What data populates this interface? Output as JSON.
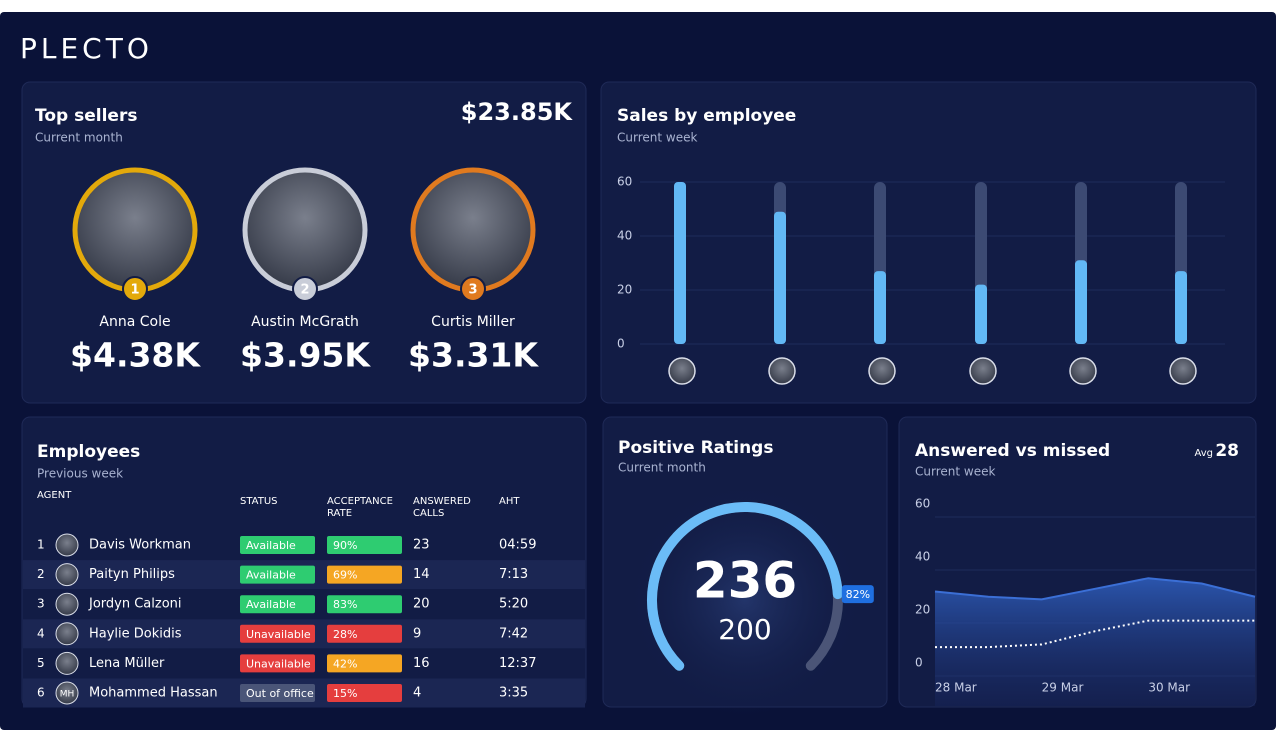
{
  "logo": "PLECTO",
  "top_sellers": {
    "title": "Top sellers",
    "subtitle": "Current month",
    "total": "$23.85K",
    "sellers": [
      {
        "rank": 1,
        "name": "Anna Cole",
        "amount": "$4.38K",
        "color": "#e3a90b"
      },
      {
        "rank": 2,
        "name": "Austin McGrath",
        "amount": "$3.95K",
        "color": "#c9cdd8"
      },
      {
        "rank": 3,
        "name": "Curtis Miller",
        "amount": "$3.31K",
        "color": "#e07a1f"
      }
    ]
  },
  "sales_by_employee": {
    "type": "bar",
    "title": "Sales by employee",
    "subtitle": "Current week",
    "values": [
      60,
      49,
      27,
      22,
      31,
      27
    ],
    "color": "#62b8f5",
    "ylim": [
      0,
      60
    ],
    "yticks": [
      0,
      20,
      40,
      60
    ],
    "grid": true
  },
  "employees": {
    "title": "Employees",
    "subtitle": "Previous week",
    "columns": [
      "AGENT",
      "STATUS",
      "ACCEPTANCE RATE",
      "ANSWERED CALLS",
      "AHT"
    ],
    "rows": [
      {
        "rank": 1,
        "agent": "Davis Workman",
        "status": "Available",
        "status_color": "#2ecc71",
        "acceptance_rate": "90%",
        "rate_color": "#2ecc71",
        "answered_calls": 23,
        "aht": "04:59"
      },
      {
        "rank": 2,
        "agent": "Paityn Philips",
        "status": "Available",
        "status_color": "#2ecc71",
        "acceptance_rate": "69%",
        "rate_color": "#f5a623",
        "answered_calls": 14,
        "aht": "7:13"
      },
      {
        "rank": 3,
        "agent": "Jordyn Calzoni",
        "status": "Available",
        "status_color": "#2ecc71",
        "acceptance_rate": "83%",
        "rate_color": "#2ecc71",
        "answered_calls": 20,
        "aht": "5:20"
      },
      {
        "rank": 4,
        "agent": "Haylie Dokidis",
        "status": "Unavailable",
        "status_color": "#e53e3e",
        "acceptance_rate": "28%",
        "rate_color": "#e53e3e",
        "answered_calls": 9,
        "aht": "7:42"
      },
      {
        "rank": 5,
        "agent": "Lena Müller",
        "status": "Unavailable",
        "status_color": "#e53e3e",
        "acceptance_rate": "42%",
        "rate_color": "#f5a623",
        "answered_calls": 16,
        "aht": "12:37"
      },
      {
        "rank": 6,
        "agent": "Mohammed Hassan",
        "initials": "MH",
        "status": "Out of office",
        "status_color": "#4a5578",
        "acceptance_rate": "15%",
        "rate_color": "#e53e3e",
        "answered_calls": 4,
        "aht": "3:35"
      }
    ]
  },
  "positive_ratings": {
    "type": "gauge",
    "title": "Positive Ratings",
    "subtitle": "Current month",
    "value": 236,
    "target": 200,
    "percent": {
      "value": 82,
      "label": "82%"
    },
    "color": "#6bbcf7"
  },
  "answered_vs_missed": {
    "type": "line",
    "title": "Answered vs missed",
    "subtitle": "Current week",
    "avg_label": "Avg",
    "avg": 28,
    "categories": [
      "28 Mar",
      null,
      "29 Mar",
      null,
      "30 Mar",
      null,
      null
    ],
    "series": [
      {
        "name": "Answered",
        "color": "#3b6fd6",
        "values": [
          27,
          25,
          24,
          28,
          32,
          30,
          25
        ]
      },
      {
        "name": "Missed",
        "color": "#ffffff",
        "values": [
          6,
          6,
          7,
          12,
          16,
          16,
          16
        ]
      }
    ],
    "ylim": [
      0,
      60
    ],
    "yticks": [
      0,
      20,
      40,
      60
    ],
    "grid": true
  }
}
